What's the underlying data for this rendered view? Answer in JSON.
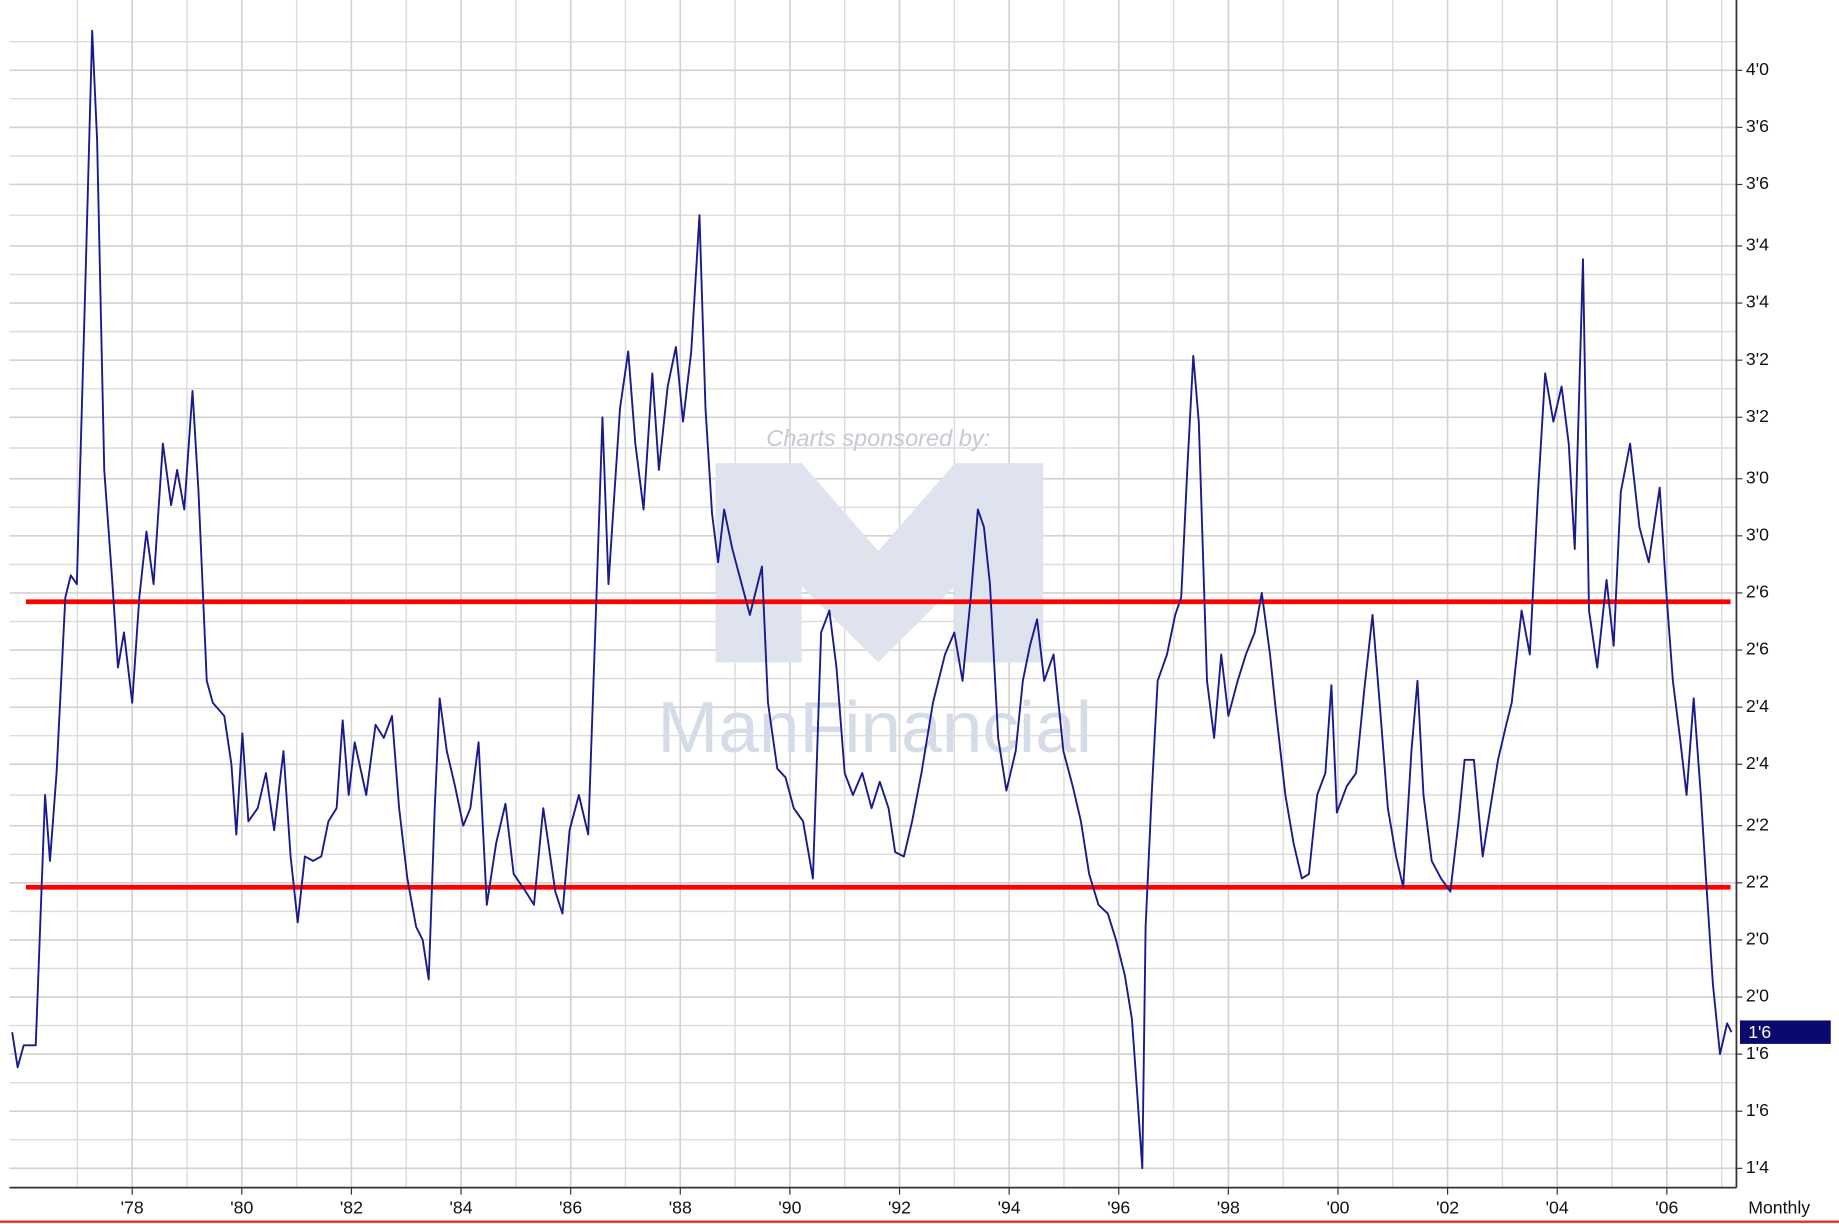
{
  "chart_data": {
    "type": "line",
    "sponsor_text": "Charts sponsored by:",
    "sponsor_name": "ManFinancial",
    "period": "Monthly",
    "xlim": [
      1975.76,
      2007.27
    ],
    "xticks": [
      {
        "value": 1978,
        "label": "'78"
      },
      {
        "value": 1980,
        "label": "'80"
      },
      {
        "value": 1982,
        "label": "'82"
      },
      {
        "value": 1984,
        "label": "'84"
      },
      {
        "value": 1986,
        "label": "'86"
      },
      {
        "value": 1988,
        "label": "'88"
      },
      {
        "value": 1990,
        "label": "'90"
      },
      {
        "value": 1992,
        "label": "'92"
      },
      {
        "value": 1994,
        "label": "'94"
      },
      {
        "value": 1996,
        "label": "'96"
      },
      {
        "value": 1998,
        "label": "'98"
      },
      {
        "value": 2000,
        "label": "'00"
      },
      {
        "value": 2002,
        "label": "'02"
      },
      {
        "value": 2004,
        "label": "'04"
      },
      {
        "value": 2006,
        "label": "'06"
      }
    ],
    "ylim": [
      1.456,
      4.16
    ],
    "yticks": [
      {
        "value": 1.5,
        "label": "1'4"
      },
      {
        "value": 1.63,
        "label": "1'6"
      },
      {
        "value": 1.76,
        "label": "1'6"
      },
      {
        "value": 1.89,
        "label": "2'0"
      },
      {
        "value": 2.02,
        "label": "2'0"
      },
      {
        "value": 2.15,
        "label": "2'2"
      },
      {
        "value": 2.28,
        "label": "2'2"
      },
      {
        "value": 2.42,
        "label": "2'4"
      },
      {
        "value": 2.55,
        "label": "2'4"
      },
      {
        "value": 2.68,
        "label": "2'6"
      },
      {
        "value": 2.81,
        "label": "2'6"
      },
      {
        "value": 2.94,
        "label": "3'0"
      },
      {
        "value": 3.07,
        "label": "3'0"
      },
      {
        "value": 3.21,
        "label": "3'2"
      },
      {
        "value": 3.34,
        "label": "3'2"
      },
      {
        "value": 3.47,
        "label": "3'4"
      },
      {
        "value": 3.6,
        "label": "3'4"
      },
      {
        "value": 3.74,
        "label": "3'6"
      },
      {
        "value": 3.87,
        "label": "3'6"
      },
      {
        "value": 4.0,
        "label": "4'0"
      }
    ],
    "grid": true,
    "hlines": [
      {
        "value": 2.79,
        "color": "#ff0000"
      },
      {
        "value": 2.14,
        "color": "#ff0000"
      }
    ],
    "last_label": {
      "value": 1.81,
      "label": "1'6",
      "color": "#0a0a6e"
    },
    "x": [
      1975.81,
      1975.91,
      1976.02,
      1976.24,
      1976.41,
      1976.5,
      1976.62,
      1976.78,
      1976.88,
      1976.99,
      1977.14,
      1977.27,
      1977.36,
      1977.49,
      1977.64,
      1977.74,
      1977.85,
      1978.0,
      1978.13,
      1978.26,
      1978.39,
      1978.56,
      1978.71,
      1978.82,
      1978.95,
      1979.1,
      1979.21,
      1979.36,
      1979.47,
      1979.68,
      1979.81,
      1979.9,
      1980.01,
      1980.12,
      1980.29,
      1980.44,
      1980.59,
      1980.76,
      1980.89,
      1981.02,
      1981.15,
      1981.3,
      1981.45,
      1981.58,
      1981.73,
      1981.84,
      1981.95,
      1982.06,
      1982.27,
      1982.44,
      1982.59,
      1982.74,
      1982.87,
      1983.02,
      1983.18,
      1983.3,
      1983.41,
      1983.52,
      1983.61,
      1983.74,
      1983.89,
      1984.04,
      1984.17,
      1984.32,
      1984.47,
      1984.64,
      1984.81,
      1984.96,
      1985.18,
      1985.33,
      1985.5,
      1985.72,
      1985.85,
      1985.98,
      1986.15,
      1986.32,
      1986.47,
      1986.58,
      1986.69,
      1986.8,
      1986.9,
      1987.05,
      1987.18,
      1987.33,
      1987.49,
      1987.61,
      1987.77,
      1987.92,
      1988.05,
      1988.2,
      1988.35,
      1988.46,
      1988.58,
      1988.69,
      1988.8,
      1988.95,
      1989.12,
      1989.27,
      1989.49,
      1989.6,
      1989.77,
      1989.92,
      1990.07,
      1990.24,
      1990.42,
      1990.57,
      1990.72,
      1990.85,
      1991.0,
      1991.15,
      1991.32,
      1991.49,
      1991.64,
      1991.8,
      1991.92,
      1992.08,
      1992.23,
      1992.4,
      1992.61,
      1992.83,
      1993.0,
      1993.15,
      1993.3,
      1993.43,
      1993.54,
      1993.65,
      1993.8,
      1993.95,
      1994.12,
      1994.25,
      1994.38,
      1994.51,
      1994.64,
      1994.81,
      1994.99,
      1995.16,
      1995.31,
      1995.46,
      1995.63,
      1995.8,
      1995.95,
      1996.11,
      1996.24,
      1996.32,
      1996.43,
      1996.49,
      1996.6,
      1996.71,
      1996.88,
      1997.03,
      1997.14,
      1997.25,
      1997.36,
      1997.46,
      1997.61,
      1997.74,
      1997.87,
      1998.0,
      1998.17,
      1998.32,
      1998.48,
      1998.61,
      1998.76,
      1998.86,
      1999.04,
      1999.19,
      1999.34,
      1999.47,
      1999.62,
      1999.77,
      1999.88,
      1999.98,
      2000.16,
      2000.33,
      2000.48,
      2000.63,
      2000.76,
      2000.91,
      2001.06,
      2001.19,
      2001.34,
      2001.45,
      2001.56,
      2001.71,
      2001.88,
      2002.05,
      2002.2,
      2002.31,
      2002.48,
      2002.64,
      2002.74,
      2002.92,
      2003.07,
      2003.17,
      2003.35,
      2003.5,
      2003.65,
      2003.78,
      2003.93,
      2004.08,
      2004.21,
      2004.32,
      2004.47,
      2004.58,
      2004.73,
      2004.9,
      2005.03,
      2005.16,
      2005.33,
      2005.5,
      2005.67,
      2005.87,
      2005.98,
      2006.11,
      2006.24,
      2006.36,
      2006.49,
      2006.62,
      2006.73,
      2006.84,
      2006.97,
      2007.1,
      2007.18
    ],
    "series": [
      {
        "color": "#1a1a8c",
        "values": [
          1.81,
          1.73,
          1.78,
          1.78,
          2.35,
          2.2,
          2.4,
          2.8,
          2.85,
          2.83,
          3.49,
          4.09,
          3.84,
          3.09,
          2.83,
          2.64,
          2.72,
          2.56,
          2.8,
          2.95,
          2.83,
          3.15,
          3.01,
          3.09,
          3.0,
          3.27,
          3.04,
          2.61,
          2.56,
          2.53,
          2.42,
          2.26,
          2.49,
          2.29,
          2.32,
          2.4,
          2.27,
          2.45,
          2.21,
          2.06,
          2.21,
          2.2,
          2.21,
          2.29,
          2.32,
          2.52,
          2.35,
          2.47,
          2.35,
          2.51,
          2.48,
          2.53,
          2.32,
          2.16,
          2.05,
          2.02,
          1.93,
          2.32,
          2.57,
          2.45,
          2.37,
          2.28,
          2.32,
          2.47,
          2.1,
          2.24,
          2.33,
          2.17,
          2.13,
          2.1,
          2.32,
          2.13,
          2.08,
          2.27,
          2.35,
          2.26,
          2.8,
          3.21,
          2.83,
          3.04,
          3.23,
          3.36,
          3.15,
          3.0,
          3.31,
          3.09,
          3.28,
          3.37,
          3.2,
          3.36,
          3.67,
          3.23,
          2.99,
          2.88,
          3.0,
          2.91,
          2.83,
          2.76,
          2.87,
          2.56,
          2.41,
          2.39,
          2.32,
          2.29,
          2.16,
          2.72,
          2.77,
          2.64,
          2.4,
          2.35,
          2.4,
          2.32,
          2.38,
          2.32,
          2.22,
          2.21,
          2.29,
          2.4,
          2.56,
          2.67,
          2.72,
          2.61,
          2.8,
          3.0,
          2.96,
          2.83,
          2.48,
          2.36,
          2.45,
          2.61,
          2.69,
          2.75,
          2.61,
          2.67,
          2.45,
          2.37,
          2.29,
          2.17,
          2.1,
          2.08,
          2.02,
          1.94,
          1.84,
          1.7,
          1.5,
          2.05,
          2.35,
          2.61,
          2.67,
          2.76,
          2.8,
          3.09,
          3.35,
          3.2,
          2.61,
          2.48,
          2.67,
          2.53,
          2.61,
          2.67,
          2.72,
          2.81,
          2.67,
          2.55,
          2.35,
          2.24,
          2.16,
          2.17,
          2.35,
          2.4,
          2.6,
          2.31,
          2.37,
          2.4,
          2.59,
          2.76,
          2.56,
          2.32,
          2.21,
          2.14,
          2.45,
          2.61,
          2.35,
          2.2,
          2.16,
          2.13,
          2.29,
          2.43,
          2.43,
          2.21,
          2.29,
          2.43,
          2.51,
          2.56,
          2.77,
          2.67,
          3.04,
          3.31,
          3.2,
          3.28,
          3.15,
          2.91,
          3.57,
          2.77,
          2.64,
          2.84,
          2.69,
          3.04,
          3.15,
          2.96,
          2.88,
          3.05,
          2.83,
          2.61,
          2.48,
          2.35,
          2.57,
          2.35,
          2.13,
          1.92,
          1.76,
          1.83,
          1.81
        ]
      }
    ]
  }
}
